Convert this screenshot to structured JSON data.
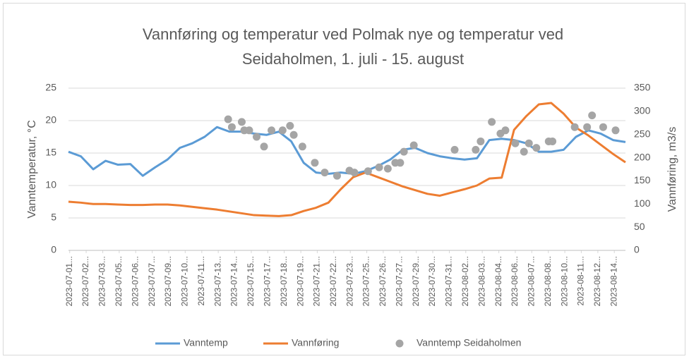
{
  "chart_data": {
    "type": "line",
    "title": [
      "Vannføring og temperatur ved Polmak nye og temperatur ved",
      "Seidaholmen, 1. juli - 15. august"
    ],
    "ylabel": "Vanntemperatur, °C",
    "y2label": "Vannføring, m3/s",
    "xlim": [
      0,
      45
    ],
    "ylim": [
      0,
      25
    ],
    "yticks": [
      0,
      5,
      10,
      15,
      20,
      25
    ],
    "y2lim": [
      0,
      350
    ],
    "y2ticks": [
      0,
      50,
      100,
      150,
      200,
      250,
      300,
      350
    ],
    "grid": true,
    "legend": "bottom",
    "xticks": [
      {
        "value": 0.1,
        "label": "2023-07-01..."
      },
      {
        "value": 1.43,
        "label": "2023-07-02..."
      },
      {
        "value": 2.77,
        "label": "2023-07-03..."
      },
      {
        "value": 4.1,
        "label": "2023-07-05..."
      },
      {
        "value": 5.43,
        "label": "2023-07-06..."
      },
      {
        "value": 6.77,
        "label": "2023-07-07..."
      },
      {
        "value": 8.1,
        "label": "2023-07-09..."
      },
      {
        "value": 9.43,
        "label": "2023-07-10..."
      },
      {
        "value": 10.77,
        "label": "2023-07-11..."
      },
      {
        "value": 12.1,
        "label": "2023-07-13..."
      },
      {
        "value": 13.43,
        "label": "2023-07-14..."
      },
      {
        "value": 14.77,
        "label": "2023-07-15..."
      },
      {
        "value": 16.1,
        "label": "2023-07-17..."
      },
      {
        "value": 17.43,
        "label": "2023-07-18..."
      },
      {
        "value": 18.77,
        "label": "2023-07-19..."
      },
      {
        "value": 20.1,
        "label": "2023-07-21..."
      },
      {
        "value": 21.43,
        "label": "2023-07-22..."
      },
      {
        "value": 22.77,
        "label": "2023-07-23..."
      },
      {
        "value": 24.1,
        "label": "2023-07-25..."
      },
      {
        "value": 25.43,
        "label": "2023-07-26..."
      },
      {
        "value": 26.77,
        "label": "2023-07-27..."
      },
      {
        "value": 28.1,
        "label": "2023-07-29..."
      },
      {
        "value": 29.43,
        "label": "2023-07-30..."
      },
      {
        "value": 30.77,
        "label": "2023-07-31..."
      },
      {
        "value": 32.1,
        "label": "2023-08-02..."
      },
      {
        "value": 33.43,
        "label": "2023-08-03..."
      },
      {
        "value": 34.77,
        "label": "2023-08-04..."
      },
      {
        "value": 36.1,
        "label": "2023-08-06..."
      },
      {
        "value": 37.43,
        "label": "2023-08-07..."
      },
      {
        "value": 38.77,
        "label": "2023-08-08..."
      },
      {
        "value": 40.1,
        "label": "2023-08-10..."
      },
      {
        "value": 41.43,
        "label": "2023-08-11..."
      },
      {
        "value": 42.77,
        "label": "2023-08-12..."
      },
      {
        "value": 44.1,
        "label": "2023-08-14..."
      }
    ],
    "series": [
      {
        "name": "Vanntemp",
        "type": "line",
        "color": "#5b9bd5",
        "axis": "y",
        "x": [
          0,
          1,
          2,
          3,
          4,
          5,
          6,
          7,
          8,
          9,
          10,
          11,
          12,
          13,
          14,
          15,
          16,
          17,
          18,
          19,
          20,
          21,
          22,
          23,
          24,
          25,
          26,
          27,
          28,
          29,
          30,
          31,
          32,
          33,
          34,
          35,
          36,
          37,
          38,
          39,
          40,
          41,
          42,
          43,
          44,
          45
        ],
        "values": [
          15.2,
          14.5,
          12.5,
          13.8,
          13.2,
          13.3,
          11.5,
          12.8,
          14.0,
          15.8,
          16.5,
          17.5,
          19.0,
          18.3,
          18.3,
          18.0,
          17.8,
          18.3,
          16.8,
          13.5,
          12.0,
          11.8,
          12.0,
          11.8,
          12.2,
          13.0,
          14.0,
          15.5,
          15.8,
          15.0,
          14.5,
          14.2,
          14.0,
          14.2,
          17.0,
          17.2,
          17.0,
          16.5,
          15.2,
          15.2,
          15.5,
          17.5,
          18.5,
          18.0,
          17.0,
          16.7
        ]
      },
      {
        "name": "Vannføring",
        "type": "line",
        "color": "#ed7d31",
        "axis": "y2",
        "x": [
          0,
          1,
          2,
          3,
          4,
          5,
          6,
          7,
          8,
          9,
          10,
          11,
          12,
          13,
          14,
          15,
          16,
          17,
          18,
          19,
          20,
          21,
          22,
          23,
          24,
          25,
          26,
          27,
          28,
          29,
          30,
          31,
          32,
          33,
          34,
          35,
          36,
          37,
          38,
          39,
          40,
          41,
          42,
          43,
          44,
          45
        ],
        "values": [
          105,
          103,
          100,
          100,
          99,
          98,
          98,
          99,
          99,
          97,
          94,
          91,
          88,
          84,
          80,
          76,
          75,
          74,
          76,
          85,
          92,
          103,
          132,
          158,
          168,
          158,
          148,
          138,
          130,
          122,
          118,
          125,
          132,
          140,
          155,
          157,
          260,
          290,
          315,
          318,
          295,
          265,
          248,
          228,
          208,
          190
        ]
      },
      {
        "name": "Vanntemp Seidaholmen",
        "type": "scatter",
        "color": "#a5a5a5",
        "axis": "y",
        "x": [
          12.9,
          14.0,
          13.2,
          14.2,
          14.6,
          15.2,
          15.8,
          16.4,
          17.3,
          17.9,
          18.2,
          18.9,
          19.9,
          20.7,
          21.7,
          22.7,
          23.1,
          24.2,
          25.1,
          25.8,
          26.4,
          26.8,
          27.1,
          27.9,
          31.2,
          32.9,
          33.3,
          34.2,
          34.9,
          35.3,
          36.1,
          36.8,
          37.2,
          37.8,
          38.8,
          39.1,
          40.9,
          41.9,
          42.3,
          43.2,
          44.2
        ],
        "values": [
          20.2,
          19.8,
          19.0,
          18.5,
          18.5,
          17.5,
          16.0,
          18.5,
          18.5,
          19.2,
          17.8,
          16.0,
          13.5,
          12.0,
          11.5,
          12.3,
          12.0,
          12.2,
          12.8,
          12.6,
          13.5,
          13.5,
          15.2,
          16.2,
          15.5,
          15.5,
          16.8,
          19.8,
          18.0,
          18.5,
          16.5,
          15.2,
          16.5,
          15.8,
          16.8,
          16.8,
          19.0,
          19.0,
          20.8,
          19.0,
          18.5
        ]
      }
    ]
  }
}
